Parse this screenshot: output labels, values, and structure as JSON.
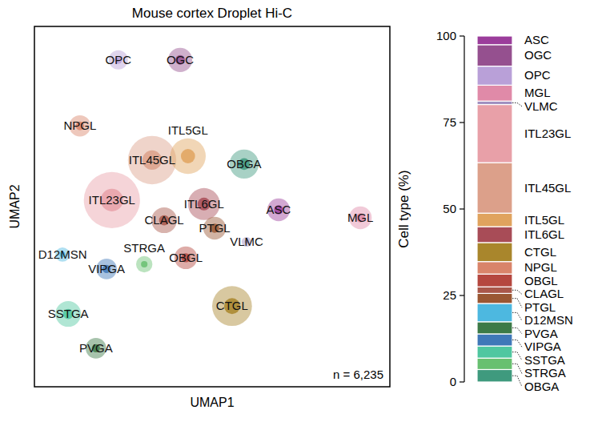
{
  "chart_data": [
    {
      "type": "scatter",
      "title": "Mouse cortex Droplet Hi-C",
      "x_label": "UMAP1",
      "y_label": "UMAP2",
      "annotation": "n = 6,235",
      "tick_labels": false,
      "xlim": [
        0,
        100
      ],
      "ylim": [
        0,
        100
      ],
      "categories": [
        "OPC",
        "OGC",
        "NPGL",
        "ITL45GL",
        "ITL5GL",
        "ITL23GL",
        "ITL6GL",
        "OBGA",
        "CLAGL",
        "PTGL",
        "ASC",
        "MGL",
        "VLMC",
        "D12MSN",
        "OBGL",
        "VIPGA",
        "STRGA",
        "SSTGA",
        "PVGA",
        "CTGL"
      ],
      "x": [
        23.6,
        41.0,
        12.8,
        33.1,
        43.2,
        21.8,
        47.7,
        59.0,
        36.5,
        50.7,
        68.7,
        91.7,
        59.7,
        7.9,
        42.6,
        20.3,
        30.9,
        9.5,
        17.3,
        55.6
      ],
      "values": [
        90.7,
        90.7,
        72.4,
        62.9,
        64.0,
        51.8,
        50.7,
        61.8,
        46.2,
        44.0,
        49.1,
        46.9,
        40.2,
        36.7,
        35.8,
        32.7,
        34.0,
        20.2,
        10.7,
        22.4
      ],
      "sizes": [
        2.7,
        3.4,
        3.0,
        6.8,
        5.0,
        7.9,
        4.5,
        4.1,
        3.6,
        3.2,
        3.2,
        3.2,
        1.4,
        2.0,
        3.2,
        2.9,
        2.3,
        3.6,
        2.9,
        5.6
      ],
      "colors": [
        "#b9a0d8",
        "#95508f",
        "#d9846a",
        "#dca08a",
        "#e0a35e",
        "#e8a0a8",
        "#a84c57",
        "#3f9a7e",
        "#a9574a",
        "#9a5733",
        "#9b3d9b",
        "#e08aa8",
        "#9f8fc0",
        "#4db8e0",
        "#b5473f",
        "#3f78b8",
        "#68c070",
        "#4fc7a0",
        "#3c7a48",
        "#a9862c"
      ]
    },
    {
      "type": "bar",
      "stacked": true,
      "y_label": "Cell type (%)",
      "ylim": [
        0,
        100
      ],
      "yticks": [
        0,
        25,
        50,
        75,
        100
      ],
      "categories": [
        "ASC",
        "OGC",
        "OPC",
        "MGL",
        "VLMC",
        "ITL23GL",
        "ITL45GL",
        "ITL5GL",
        "ITL6GL",
        "CTGL",
        "NPGL",
        "OBGL",
        "CLAGL",
        "PTGL",
        "D12MSN",
        "PVGA",
        "VIPGA",
        "SSTGA",
        "STRGA",
        "OBGA"
      ],
      "values": [
        2.5,
        6.2,
        5.5,
        4.6,
        1.0,
        16.8,
        14.6,
        3.9,
        4.6,
        5.5,
        3.6,
        3.7,
        1.9,
        2.9,
        5.3,
        3.5,
        3.5,
        3.5,
        3.3,
        3.6
      ],
      "colors": [
        "#9b3d9b",
        "#95508f",
        "#b9a0d8",
        "#e08aa8",
        "#9f8fc0",
        "#e8a0a8",
        "#dca08a",
        "#e0a35e",
        "#a84c57",
        "#a9862c",
        "#d9846a",
        "#b5473f",
        "#a9574a",
        "#9a5733",
        "#4db8e0",
        "#3c7a48",
        "#3f78b8",
        "#4fc7a0",
        "#68c070",
        "#3f9a7e"
      ]
    }
  ]
}
